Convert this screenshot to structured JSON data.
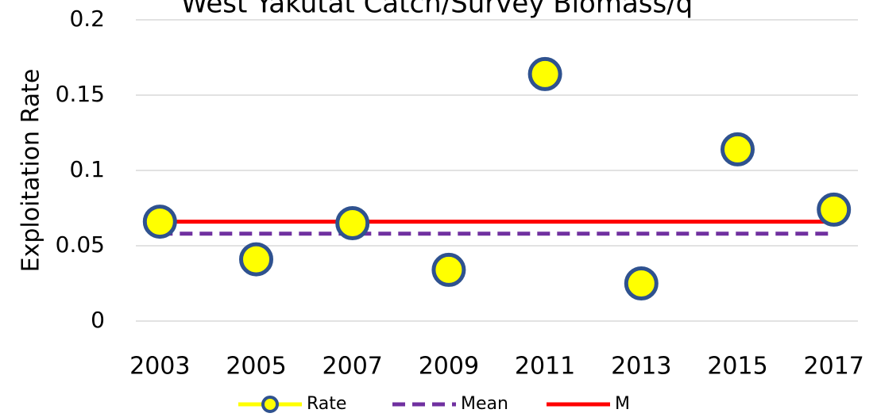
{
  "chart_data": {
    "type": "line",
    "title": "West Yakutat Catch/Survey Biomass/q",
    "y_label": "Exploitation Rate",
    "x": [
      2003,
      2005,
      2007,
      2009,
      2011,
      2013,
      2015,
      2017
    ],
    "xlim": [
      2002.5,
      2017.5
    ],
    "xticks": [
      2003,
      2005,
      2007,
      2009,
      2011,
      2013,
      2015,
      2017
    ],
    "ylim": [
      0,
      0.2
    ],
    "yticks": [
      0,
      0.05,
      0.1,
      0.15,
      0.2
    ],
    "grid": true,
    "legend": "bottom",
    "series": [
      {
        "name": "Rate",
        "color": "#ffff00",
        "edge_color": "#2f528f",
        "style": "markers",
        "values": [
          0.066,
          0.041,
          0.065,
          0.034,
          0.164,
          0.025,
          0.114,
          0.074
        ]
      },
      {
        "name": "Mean",
        "color": "#7030a0",
        "style": "dashed",
        "values": [
          0.058,
          0.058,
          0.058,
          0.058,
          0.058,
          0.058,
          0.058,
          0.058
        ]
      },
      {
        "name": "M",
        "color": "#ff0000",
        "style": "solid",
        "values": [
          0.066,
          0.066,
          0.066,
          0.066,
          0.066,
          0.066,
          0.066,
          0.066
        ]
      }
    ]
  }
}
